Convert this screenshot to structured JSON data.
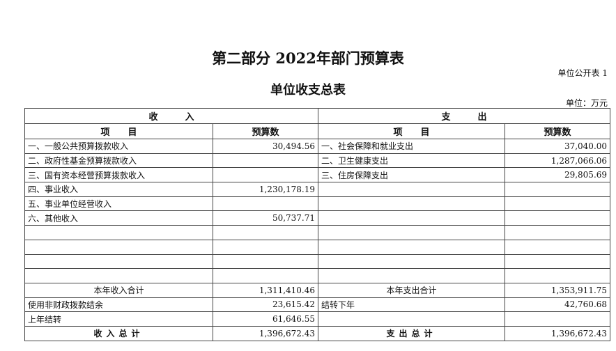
{
  "title": "第二部分 2022年部门预算表",
  "table_no": "单位公开表 1",
  "subtitle": "单位收支总表",
  "unit": "单位：万元",
  "headers": {
    "income": "收　　　入",
    "expense": "支　　　出",
    "item": "项　　目",
    "budget": "预算数"
  },
  "rows": [
    {
      "in_item": "一、一般公共预算拨款收入",
      "in_val": "30,494.56",
      "ex_item": "一、社会保障和就业支出",
      "ex_val": "37,040.00"
    },
    {
      "in_item": "二、政府性基金预算拨款收入",
      "in_val": "",
      "ex_item": "二、卫生健康支出",
      "ex_val": "1,287,066.06"
    },
    {
      "in_item": "三、国有资本经营预算拨款收入",
      "in_val": "",
      "ex_item": "三、住房保障支出",
      "ex_val": "29,805.69"
    },
    {
      "in_item": "四、事业收入",
      "in_val": "1,230,178.19",
      "ex_item": "",
      "ex_val": ""
    },
    {
      "in_item": "五、事业单位经营收入",
      "in_val": "",
      "ex_item": "",
      "ex_val": ""
    },
    {
      "in_item": "六、其他收入",
      "in_val": "50,737.71",
      "ex_item": "",
      "ex_val": ""
    },
    {
      "in_item": "",
      "in_val": "",
      "ex_item": "",
      "ex_val": ""
    },
    {
      "in_item": "",
      "in_val": "",
      "ex_item": "",
      "ex_val": ""
    },
    {
      "in_item": "",
      "in_val": "",
      "ex_item": "",
      "ex_val": ""
    },
    {
      "in_item": "",
      "in_val": "",
      "ex_item": "",
      "ex_val": ""
    }
  ],
  "subtotal": {
    "in_item": "本年收入合计",
    "in_val": "1,311,410.46",
    "ex_item": "本年支出合计",
    "ex_val": "1,353,911.75"
  },
  "extra": [
    {
      "in_item": "使用非财政拨款结余",
      "in_val": "23,615.42",
      "ex_item": "结转下年",
      "ex_val": "42,760.68"
    },
    {
      "in_item": "上年结转",
      "in_val": "61,646.55",
      "ex_item": "",
      "ex_val": ""
    }
  ],
  "total": {
    "in_item": "收入总计",
    "in_val": "1,396,672.43",
    "ex_item": "支出总计",
    "ex_val": "1,396,672.43"
  }
}
